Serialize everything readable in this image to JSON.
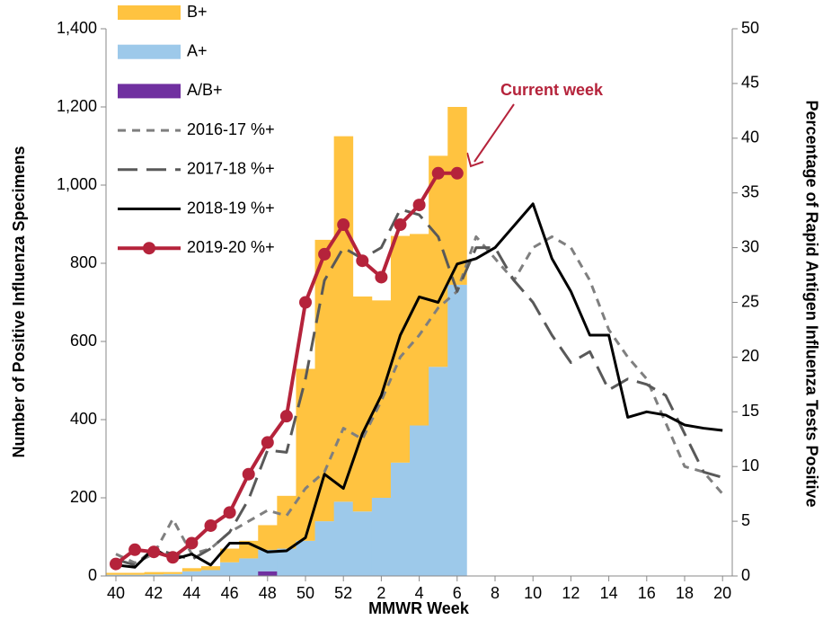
{
  "chart_data": {
    "type": "bar-line",
    "x_label": "MMWR Week",
    "y_label": "Number of Positive Influenza Specimens",
    "y2_label": "Percentage of Rapid Antigen Influenza Tests Positive",
    "annotation": "Current week",
    "categories": [
      "40",
      null,
      "42",
      null,
      "44",
      null,
      "46",
      null,
      "48",
      null,
      "50",
      null,
      "52",
      null,
      "2",
      null,
      "4",
      null,
      "6",
      null,
      "8",
      null,
      "10",
      null,
      "12",
      null,
      "14",
      null,
      "16",
      null,
      "18",
      null,
      "20"
    ],
    "ylim": [
      0,
      1400
    ],
    "yticks": [
      0,
      200,
      400,
      600,
      800,
      {
        "value": 1000,
        "label": "1,000"
      },
      {
        "value": 1200,
        "label": "1,200"
      },
      {
        "value": 1400,
        "label": "1,400"
      }
    ],
    "y2lim": [
      0,
      50
    ],
    "y2ticks": [
      0,
      5,
      10,
      15,
      20,
      25,
      30,
      35,
      40,
      45,
      50
    ],
    "series": [
      {
        "name": "B+",
        "kind": "bar",
        "color": "#ffc340",
        "values": [
          5,
          5,
          6,
          5,
          8,
          10,
          35,
          45,
          63,
          135,
          440,
          720,
          935,
          550,
          505,
          580,
          490,
          540,
          455,
          null,
          null,
          null,
          null,
          null,
          null,
          null,
          null,
          null,
          null,
          null,
          null,
          null,
          null
        ]
      },
      {
        "name": "A+",
        "kind": "bar",
        "color": "#9dc9ea",
        "values": [
          3,
          3,
          4,
          5,
          12,
          15,
          35,
          45,
          55,
          70,
          90,
          140,
          190,
          165,
          200,
          290,
          385,
          535,
          745,
          null,
          null,
          null,
          null,
          null,
          null,
          null,
          null,
          null,
          null,
          null,
          null,
          null,
          null
        ]
      },
      {
        "name": "A/B+",
        "kind": "bar",
        "color": "#7030a0",
        "values": [
          0,
          0,
          0,
          0,
          0,
          0,
          0,
          0,
          12,
          0,
          0,
          0,
          0,
          0,
          0,
          0,
          0,
          0,
          0,
          null,
          null,
          null,
          null,
          null,
          null,
          null,
          null,
          null,
          null,
          null,
          null,
          null,
          null
        ]
      },
      {
        "name": "2016-17 %+",
        "kind": "line",
        "axis": "y2",
        "style": "short-dash",
        "color": "#7f7f7f",
        "values": [
          2.0,
          1.2,
          2.0,
          5.2,
          2.0,
          2.5,
          4.0,
          5.0,
          6.0,
          5.5,
          8,
          9.5,
          13.5,
          12.5,
          16,
          20,
          22,
          24.5,
          26,
          31,
          29,
          27,
          30,
          31,
          30,
          27,
          22.5,
          20,
          18,
          14,
          10,
          9.5,
          7.5
        ]
      },
      {
        "name": "2017-18 %+",
        "kind": "line",
        "axis": "y2",
        "style": "long-dash",
        "color": "#595959",
        "values": [
          1.5,
          1.0,
          2.5,
          2.0,
          1.5,
          2.5,
          4.0,
          7.0,
          11.5,
          11.3,
          18,
          27,
          30,
          29,
          30,
          33.5,
          33,
          31,
          26,
          30,
          30,
          27,
          25,
          22,
          19.5,
          20.5,
          17,
          18,
          17.5,
          16.5,
          13,
          9.5,
          9
        ]
      },
      {
        "name": "2018-19 %+",
        "kind": "line",
        "axis": "y2",
        "style": "solid",
        "color": "#000000",
        "values": [
          1.0,
          0.8,
          2.5,
          1.5,
          2.0,
          1.0,
          3.0,
          3.0,
          2.2,
          2.3,
          3.5,
          9.3,
          8.0,
          13,
          16.5,
          22,
          25.5,
          25,
          28.5,
          29,
          30,
          32,
          34,
          29,
          26,
          22,
          22,
          14.5,
          15,
          14.7,
          13.8,
          13.5,
          13.3
        ]
      },
      {
        "name": "2019-20 %+",
        "kind": "line",
        "axis": "y2",
        "style": "solid",
        "markers": true,
        "color": "#b5233b",
        "values": [
          1.1,
          2.4,
          2.2,
          1.7,
          3.0,
          4.6,
          5.8,
          9.3,
          12.2,
          14.6,
          25.0,
          29.4,
          32.1,
          28.8,
          27.3,
          32.1,
          33.9,
          36.8,
          36.8,
          null,
          null,
          null,
          null,
          null,
          null,
          null,
          null,
          null,
          null,
          null,
          null,
          null,
          null
        ]
      }
    ]
  }
}
